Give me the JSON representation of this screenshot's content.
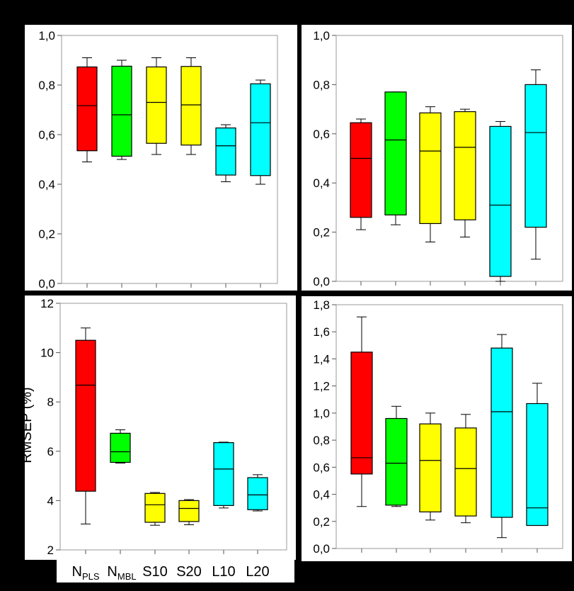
{
  "chart_data": [
    {
      "type": "box",
      "ylim": [
        0,
        1.0
      ],
      "yticks": [
        "0,0",
        "0,2",
        "0,4",
        "0,6",
        "0,8",
        "1,0"
      ],
      "grid": false,
      "series": [
        {
          "min": 0.49,
          "q1": 0.535,
          "median": 0.717,
          "q3": 0.873,
          "max": 0.91,
          "color": "#ff0000"
        },
        {
          "min": 0.5,
          "q1": 0.513,
          "median": 0.68,
          "q3": 0.876,
          "max": 0.9,
          "color": "#00ff00"
        },
        {
          "min": 0.52,
          "q1": 0.565,
          "median": 0.73,
          "q3": 0.873,
          "max": 0.91,
          "color": "#ffff00"
        },
        {
          "min": 0.52,
          "q1": 0.558,
          "median": 0.72,
          "q3": 0.875,
          "max": 0.91,
          "color": "#ffff00"
        },
        {
          "min": 0.41,
          "q1": 0.437,
          "median": 0.555,
          "q3": 0.627,
          "max": 0.64,
          "color": "#00ffff"
        },
        {
          "min": 0.4,
          "q1": 0.435,
          "median": 0.648,
          "q3": 0.805,
          "max": 0.82,
          "color": "#00ffff"
        }
      ]
    },
    {
      "type": "box",
      "ylim": [
        0,
        1.0
      ],
      "yticks": [
        "0,0",
        "0,2",
        "0,4",
        "0,6",
        "0,8",
        "1,0"
      ],
      "grid": false,
      "series": [
        {
          "min": 0.21,
          "q1": 0.26,
          "median": 0.5,
          "q3": 0.645,
          "max": 0.66,
          "color": "#ff0000"
        },
        {
          "min": 0.23,
          "q1": 0.27,
          "median": 0.575,
          "q3": 0.77,
          "max": 0.77,
          "color": "#00ff00"
        },
        {
          "min": 0.16,
          "q1": 0.235,
          "median": 0.53,
          "q3": 0.685,
          "max": 0.71,
          "color": "#ffff00"
        },
        {
          "min": 0.18,
          "q1": 0.25,
          "median": 0.545,
          "q3": 0.69,
          "max": 0.7,
          "color": "#ffff00"
        },
        {
          "min": 0.0,
          "q1": 0.02,
          "median": 0.31,
          "q3": 0.63,
          "max": 0.65,
          "color": "#00ffff"
        },
        {
          "min": 0.09,
          "q1": 0.22,
          "median": 0.605,
          "q3": 0.8,
          "max": 0.86,
          "color": "#00ffff"
        }
      ]
    },
    {
      "type": "box",
      "ylim": [
        2,
        12
      ],
      "yticks": [
        "2",
        "4",
        "6",
        "8",
        "10",
        "12"
      ],
      "ylabel": "RMSEP (%)",
      "grid": false,
      "series": [
        {
          "min": 3.05,
          "q1": 4.38,
          "median": 8.68,
          "q3": 10.5,
          "max": 11.0,
          "color": "#ff0000"
        },
        {
          "min": 5.52,
          "q1": 5.55,
          "median": 5.98,
          "q3": 6.73,
          "max": 6.87,
          "color": "#00ff00"
        },
        {
          "min": 3.0,
          "q1": 3.12,
          "median": 3.83,
          "q3": 4.29,
          "max": 4.33,
          "color": "#ffff00"
        },
        {
          "min": 3.02,
          "q1": 3.15,
          "median": 3.68,
          "q3": 4.0,
          "max": 4.04,
          "color": "#ffff00"
        },
        {
          "min": 3.7,
          "q1": 3.8,
          "median": 5.28,
          "q3": 6.35,
          "max": 6.37,
          "color": "#00ffff"
        },
        {
          "min": 3.58,
          "q1": 3.63,
          "median": 4.23,
          "q3": 4.93,
          "max": 5.05,
          "color": "#00ffff"
        }
      ]
    },
    {
      "type": "box",
      "ylim": [
        0,
        1.8
      ],
      "yticks": [
        "0,0",
        "0,2",
        "0,4",
        "0,6",
        "0,8",
        "1,0",
        "1,2",
        "1,4",
        "1,6",
        "1,8"
      ],
      "grid": false,
      "series": [
        {
          "min": 0.31,
          "q1": 0.55,
          "median": 0.67,
          "q3": 1.45,
          "max": 1.71,
          "color": "#ff0000"
        },
        {
          "min": 0.31,
          "q1": 0.32,
          "median": 0.63,
          "q3": 0.96,
          "max": 1.05,
          "color": "#00ff00"
        },
        {
          "min": 0.21,
          "q1": 0.27,
          "median": 0.65,
          "q3": 0.92,
          "max": 1.0,
          "color": "#ffff00"
        },
        {
          "min": 0.19,
          "q1": 0.24,
          "median": 0.59,
          "q3": 0.89,
          "max": 0.99,
          "color": "#ffff00"
        },
        {
          "min": 0.08,
          "q1": 0.23,
          "median": 1.01,
          "q3": 1.48,
          "max": 1.58,
          "color": "#00ffff"
        },
        {
          "min": 0.17,
          "q1": 0.17,
          "median": 0.3,
          "q3": 1.07,
          "max": 1.22,
          "color": "#00ffff"
        }
      ]
    }
  ],
  "categories": [
    {
      "base": "N",
      "sub": "PLS"
    },
    {
      "base": "N",
      "sub": "MBL"
    },
    {
      "base": "S10",
      "sub": ""
    },
    {
      "base": "S20",
      "sub": ""
    },
    {
      "base": "L10",
      "sub": ""
    },
    {
      "base": "L20",
      "sub": ""
    }
  ]
}
